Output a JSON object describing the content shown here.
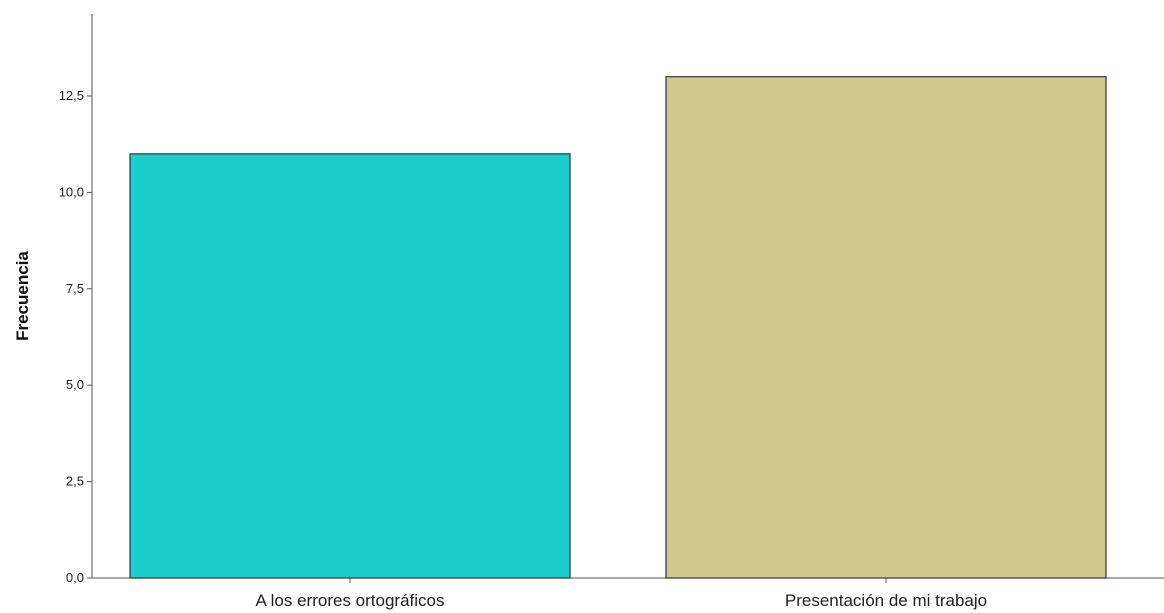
{
  "chart_data": {
    "type": "bar",
    "title": "",
    "xlabel": "",
    "ylabel": "Frecuencia",
    "categories": [
      "A los errores ortográficos",
      "Presentación de mi trabajo"
    ],
    "values": [
      11,
      13
    ],
    "ylim": [
      0,
      14.5
    ],
    "yticks": [
      0,
      2.5,
      5,
      7.5,
      10,
      12.5
    ],
    "ytick_labels": [
      "0,0",
      "2,5",
      "5,0",
      "7,5",
      "10,0",
      "12,5"
    ],
    "bar_colors": [
      "#1ccdcd",
      "#d0ca8f"
    ],
    "bar_edge_color": "#333333",
    "axis_color": "#555555",
    "grid": false,
    "legend": "none"
  }
}
